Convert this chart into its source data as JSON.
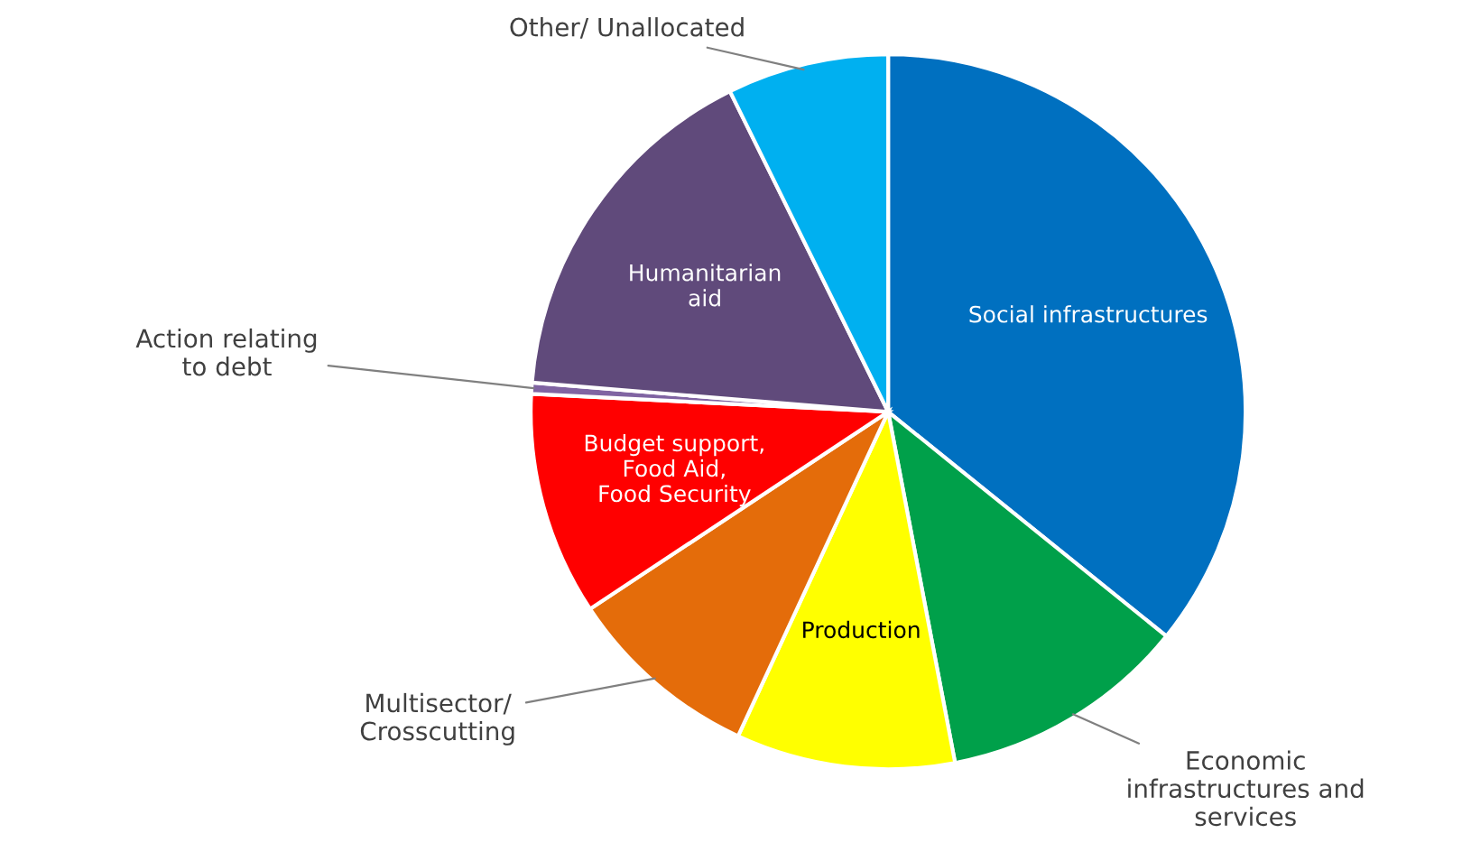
{
  "chart_data": {
    "type": "pie",
    "categories": [
      "Social infrastructures",
      "Economic\ninfrastructures and\nservices",
      "Production",
      "Multisector/\nCrosscutting",
      "Budget support,\nFood Aid,\nFood Security",
      "Action relating\nto debt",
      "Humanitarian\naid",
      "Other/ Unallocated"
    ],
    "values": [
      35.8,
      11.2,
      9.9,
      8.8,
      10.1,
      0.5,
      16.4,
      7.3
    ],
    "colors": [
      "#0070c0",
      "#00a04a",
      "#ffff00",
      "#e46c0a",
      "#ff0000",
      "#8064a2",
      "#604a7b",
      "#00b0f0"
    ],
    "legend": false
  }
}
